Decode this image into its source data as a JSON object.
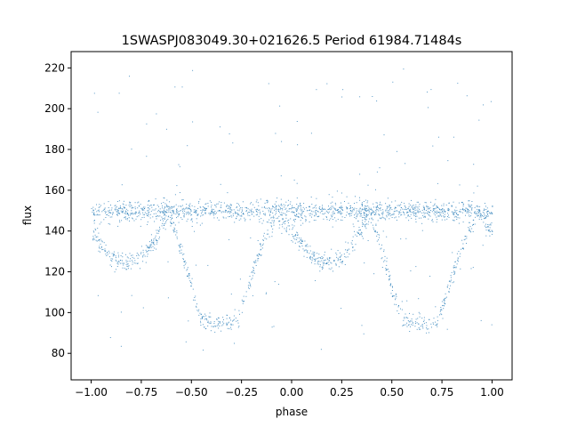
{
  "chart_data": {
    "type": "scatter",
    "title": "1SWASPJ083049.30+021626.5 Period 61984.71484s",
    "xlabel": "phase",
    "ylabel": "flux",
    "xlim": [
      -1.1,
      1.1
    ],
    "ylim": [
      67,
      228
    ],
    "x_ticks": [
      -1.0,
      -0.75,
      -0.5,
      -0.25,
      0.0,
      0.25,
      0.5,
      0.75,
      1.0
    ],
    "x_tick_labels": [
      "−1.00",
      "−0.75",
      "−0.50",
      "−0.25",
      "0.00",
      "0.25",
      "0.50",
      "0.75",
      "1.00"
    ],
    "y_ticks": [
      80,
      100,
      120,
      140,
      160,
      180,
      200,
      220
    ],
    "y_tick_labels": [
      "80",
      "100",
      "120",
      "140",
      "160",
      "180",
      "200",
      "220"
    ],
    "grid": false,
    "point_color": "#1f77b4",
    "series": [
      {
        "values_description_x": "phase",
        "baseline_flux": 150,
        "points": [
          [
            -1.0,
            141
          ],
          [
            -0.95,
            133
          ],
          [
            -0.9,
            127
          ],
          [
            -0.85,
            125
          ],
          [
            -0.8,
            125
          ],
          [
            -0.75,
            127
          ],
          [
            -0.7,
            133
          ],
          [
            -0.65,
            142
          ],
          [
            -0.62,
            149
          ],
          [
            -0.6,
            146
          ],
          [
            -0.55,
            130
          ],
          [
            -0.5,
            112
          ],
          [
            -0.45,
            97
          ],
          [
            -0.4,
            95
          ],
          [
            -0.35,
            95
          ],
          [
            -0.3,
            95
          ],
          [
            -0.27,
            96
          ],
          [
            -0.22,
            112
          ],
          [
            -0.15,
            133
          ],
          [
            -0.08,
            148
          ],
          [
            -0.05,
            145
          ],
          [
            0.0,
            140
          ],
          [
            0.05,
            134
          ],
          [
            0.1,
            127
          ],
          [
            0.15,
            125
          ],
          [
            0.2,
            125
          ],
          [
            0.25,
            127
          ],
          [
            0.3,
            133
          ],
          [
            0.35,
            142
          ],
          [
            0.38,
            149
          ],
          [
            0.4,
            146
          ],
          [
            0.45,
            130
          ],
          [
            0.5,
            112
          ],
          [
            0.55,
            97
          ],
          [
            0.6,
            95
          ],
          [
            0.65,
            95
          ],
          [
            0.7,
            95
          ],
          [
            0.73,
            96
          ],
          [
            0.78,
            112
          ],
          [
            0.85,
            133
          ],
          [
            0.92,
            148
          ],
          [
            0.95,
            145
          ],
          [
            1.0,
            140
          ]
        ]
      }
    ]
  }
}
